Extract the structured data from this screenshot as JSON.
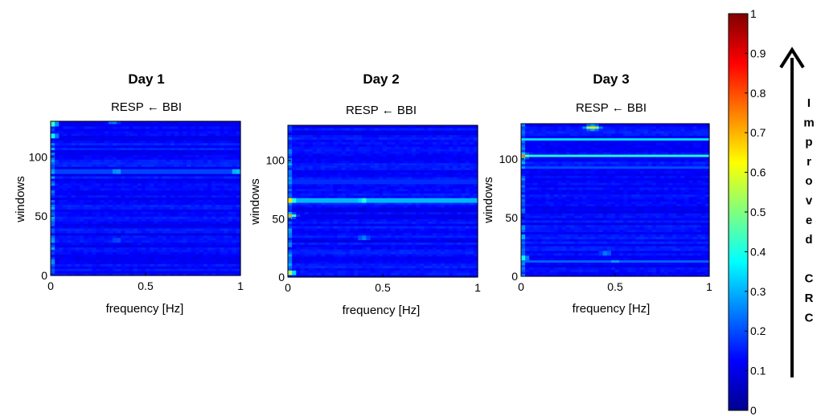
{
  "chart_data": [
    {
      "type": "heatmap",
      "title": "Day 1",
      "subtitle": "RESP ← BBI",
      "xlabel": "frequency [Hz]",
      "ylabel": "windows",
      "xlim": [
        0,
        1
      ],
      "ylim": [
        0,
        130
      ],
      "xticks": [
        "0",
        "0.5",
        "1"
      ],
      "yticks": [
        "0",
        "50",
        "100"
      ],
      "hotspots": [
        {
          "f": 0.0,
          "w": 118,
          "v": 0.5
        },
        {
          "f": 0.0,
          "w": 128,
          "v": 0.55
        },
        {
          "f": 0.0,
          "w": 88,
          "v": 0.35
        },
        {
          "f": 0.35,
          "w": 88,
          "v": 0.35
        },
        {
          "f": 0.98,
          "w": 88,
          "v": 0.4
        },
        {
          "f": 0.33,
          "w": 129,
          "v": 0.25
        },
        {
          "f": 0.35,
          "w": 30,
          "v": 0.25
        }
      ],
      "bands": [
        {
          "w": 88,
          "v": 0.28
        },
        {
          "w": 30,
          "v": 0.2
        }
      ]
    },
    {
      "type": "heatmap",
      "title": "Day 2",
      "subtitle": "RESP ← BBI",
      "xlabel": "frequency [Hz]",
      "ylabel": "windows",
      "xlim": [
        0,
        1
      ],
      "ylim": [
        0,
        130
      ],
      "xticks": [
        "0",
        "0.5",
        "1"
      ],
      "yticks": [
        "0",
        "50",
        "100"
      ],
      "hotspots": [
        {
          "f": 0.0,
          "w": 66,
          "v": 0.85
        },
        {
          "f": 0.0,
          "w": 53,
          "v": 0.75
        },
        {
          "f": 0.0,
          "w": 4,
          "v": 0.7
        },
        {
          "f": 0.4,
          "w": 66,
          "v": 0.5
        },
        {
          "f": 0.4,
          "w": 34,
          "v": 0.3
        },
        {
          "f": 0.42,
          "w": 24,
          "v": 0.2
        }
      ],
      "bands": [
        {
          "w": 66,
          "v": 0.45
        },
        {
          "w": 82,
          "v": 0.25
        }
      ]
    },
    {
      "type": "heatmap",
      "title": "Day 3",
      "subtitle": "RESP ← BBI",
      "xlabel": "frequency [Hz]",
      "ylabel": "windows",
      "xlim": [
        0,
        1
      ],
      "ylim": [
        0,
        130
      ],
      "xticks": [
        "0",
        "0.5",
        "1"
      ],
      "yticks": [
        "0",
        "50",
        "100"
      ],
      "hotspots": [
        {
          "f": 0.0,
          "w": 103,
          "v": 0.8
        },
        {
          "f": 0.0,
          "w": 16,
          "v": 0.5
        },
        {
          "f": 0.38,
          "w": 127,
          "v": 0.65
        },
        {
          "f": 0.5,
          "w": 13,
          "v": 0.3
        },
        {
          "f": 0.45,
          "w": 20,
          "v": 0.3
        }
      ],
      "bands": [
        {
          "w": 103,
          "v": 0.4
        },
        {
          "w": 117,
          "v": 0.35
        },
        {
          "w": 93,
          "v": 0.2
        },
        {
          "w": 13,
          "v": 0.22
        }
      ]
    }
  ],
  "colorbar": {
    "min": 0,
    "max": 1,
    "ticks": [
      "0",
      "0.1",
      "0.2",
      "0.3",
      "0.4",
      "0.5",
      "0.6",
      "0.7",
      "0.8",
      "0.9",
      "1"
    ]
  },
  "side_annotation": {
    "letters": [
      "I",
      "m",
      "p",
      "r",
      "o",
      "v",
      "e",
      "d",
      "",
      "C",
      "R",
      "C"
    ]
  }
}
